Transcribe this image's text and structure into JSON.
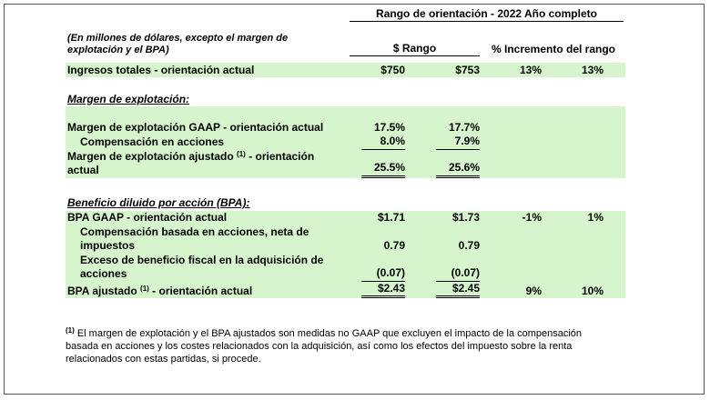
{
  "header": {
    "range_title": "Rango de orientación - 2022 Año completo",
    "note": "(En millones de dólares, excepto el margen de explotación y el BPA)",
    "range_label": "$ Rango",
    "pct_label": "% Incremento del rango"
  },
  "revenue": {
    "label": "Ingresos totales - orientación actual",
    "values": [
      "$750",
      "$753",
      "13%",
      "13%"
    ]
  },
  "operating_margin": {
    "heading": "Margen de explotación:",
    "rows": [
      {
        "label": "Margen de explotación GAAP - orientación actual",
        "values": [
          "17.5%",
          "17.7%"
        ]
      },
      {
        "label": "Compensación en acciones",
        "values": [
          "8.0%",
          "7.9%"
        ]
      },
      {
        "label": "Margen de explotación ajustado",
        "ref": "(1)",
        "label_rest": "- orientación actual",
        "values": [
          "25.5%",
          "25.6%"
        ]
      }
    ]
  },
  "eps": {
    "heading": "Beneficio diluido por acción (BPA):",
    "rows": [
      {
        "label": "BPA GAAP - orientación actual",
        "values": [
          "$1.71",
          "$1.73",
          "-1%",
          "1%"
        ]
      },
      {
        "label": "Compensación basada en acciones, neta de impuestos",
        "values": [
          "0.79",
          "0.79"
        ]
      },
      {
        "label": "Exceso de beneficio fiscal en la adquisición de acciones",
        "values": [
          "(0.07)",
          "(0.07)"
        ]
      },
      {
        "label": "BPA ajustado",
        "ref": "(1)",
        "label_rest": "- orientación actual",
        "values": [
          "$2.43",
          "$2.45",
          "9%",
          "10%"
        ]
      }
    ]
  },
  "footnote": {
    "ref": "(1)",
    "text": "El margen de explotación y el BPA ajustados son medidas no GAAP que excluyen el impacto de la compensación basada en acciones y los costes relacionados con la adquisición, así como los efectos del impuesto sobre la renta relacionados con estas partidas, si procede."
  }
}
